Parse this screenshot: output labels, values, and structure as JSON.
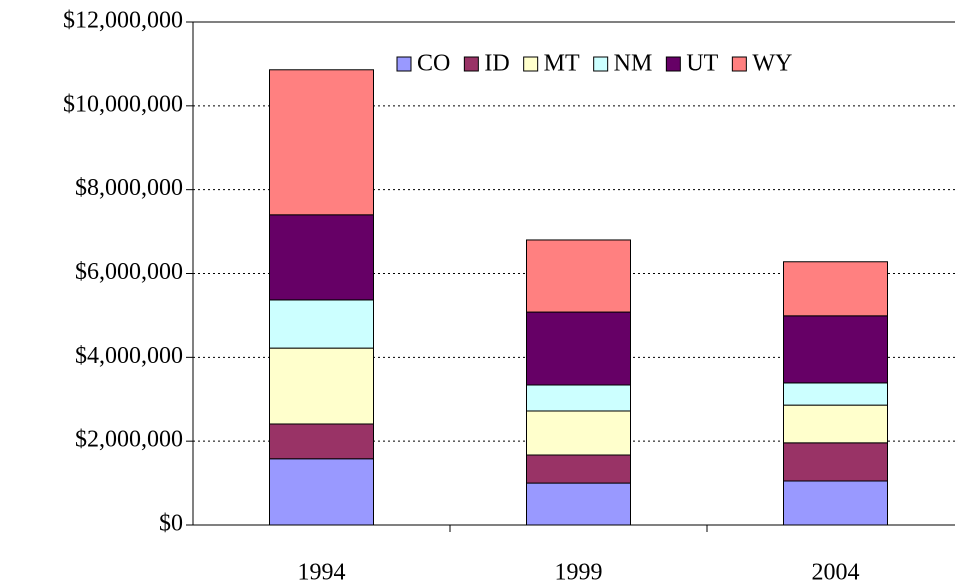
{
  "chart_data": {
    "type": "stacked_bar",
    "categories": [
      "1994",
      "1999",
      "2004"
    ],
    "series": [
      {
        "name": "CO",
        "color": "#9999ff",
        "values": [
          1580000,
          1000000,
          1050000
        ]
      },
      {
        "name": "ID",
        "color": "#993366",
        "values": [
          830000,
          670000,
          910000
        ]
      },
      {
        "name": "MT",
        "color": "#ffffcc",
        "values": [
          1810000,
          1050000,
          900000
        ]
      },
      {
        "name": "NM",
        "color": "#ccffff",
        "values": [
          1150000,
          620000,
          530000
        ]
      },
      {
        "name": "UT",
        "color": "#660066",
        "values": [
          2030000,
          1740000,
          1600000
        ]
      },
      {
        "name": "WY",
        "color": "#ff8080",
        "values": [
          3460000,
          1720000,
          1290000
        ]
      }
    ],
    "ylim": [
      0,
      12000000
    ],
    "yticks": [
      {
        "value": 0,
        "label": "$0"
      },
      {
        "value": 2000000,
        "label": "$2,000,000"
      },
      {
        "value": 4000000,
        "label": "$4,000,000"
      },
      {
        "value": 6000000,
        "label": "$6,000,000"
      },
      {
        "value": 8000000,
        "label": "$8,000,000"
      },
      {
        "value": 10000000,
        "label": "$10,000,000"
      },
      {
        "value": 12000000,
        "label": "$12,000,000"
      }
    ],
    "grid": true,
    "legend": "top-right"
  }
}
